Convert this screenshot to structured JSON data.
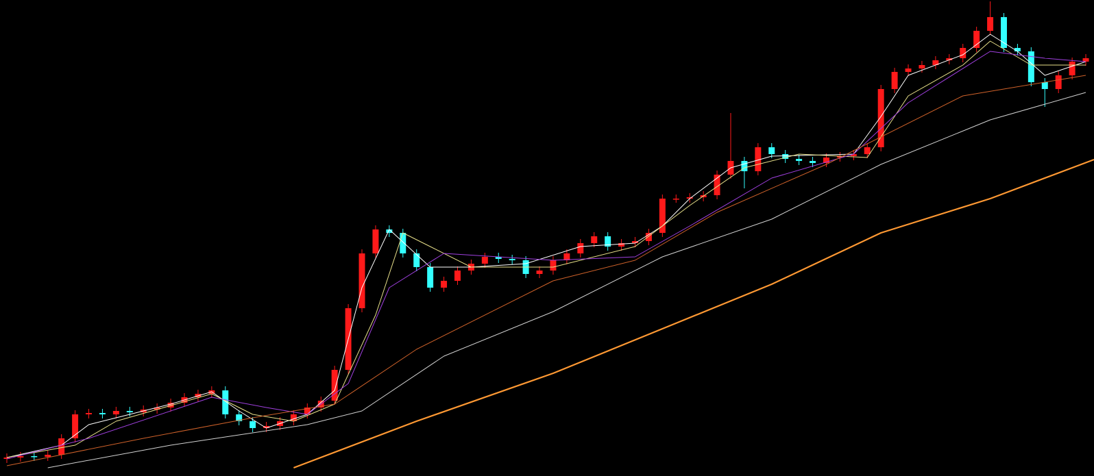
{
  "chart_data": {
    "type": "candlestick",
    "ylim": [
      0,
      695
    ],
    "xlim": [
      -0.5,
      79.6
    ],
    "up_color": "#ff1a1a",
    "down_color": "#33ffff",
    "open": [
      25,
      27,
      29,
      28,
      31,
      55,
      90,
      92,
      90,
      95,
      93,
      97,
      100,
      107,
      115,
      120,
      125,
      90,
      80,
      70,
      73,
      80,
      90,
      100,
      110,
      155,
      245,
      325,
      360,
      355,
      325,
      305,
      275,
      285,
      300,
      310,
      320,
      317,
      315,
      295,
      300,
      315,
      325,
      340,
      350,
      335,
      340,
      343,
      355,
      405,
      405,
      407,
      410,
      440,
      460,
      445,
      480,
      470,
      463,
      460,
      457,
      465,
      467,
      470,
      480,
      565,
      590,
      595,
      600,
      607,
      610,
      625,
      650,
      670,
      625,
      620,
      575,
      565,
      585,
      605
    ],
    "high": [
      33,
      35,
      35,
      37,
      61,
      96,
      98,
      98,
      101,
      101,
      103,
      106,
      113,
      121,
      126,
      131,
      131,
      96,
      86,
      79,
      86,
      96,
      106,
      116,
      161,
      251,
      331,
      366,
      366,
      361,
      331,
      311,
      291,
      306,
      316,
      326,
      326,
      323,
      321,
      306,
      321,
      331,
      346,
      356,
      356,
      346,
      349,
      361,
      411,
      411,
      413,
      416,
      446,
      530,
      466,
      486,
      486,
      476,
      469,
      466,
      471,
      473,
      476,
      486,
      571,
      596,
      601,
      606,
      613,
      616,
      631,
      656,
      693,
      676,
      631,
      626,
      581,
      591,
      611,
      616
    ],
    "low": [
      19,
      21,
      22,
      22,
      25,
      49,
      84,
      84,
      84,
      87,
      87,
      91,
      94,
      101,
      109,
      114,
      84,
      74,
      64,
      64,
      67,
      74,
      84,
      94,
      104,
      149,
      239,
      319,
      349,
      319,
      299,
      269,
      269,
      279,
      294,
      304,
      311,
      309,
      289,
      289,
      294,
      309,
      319,
      334,
      329,
      329,
      334,
      337,
      349,
      399,
      399,
      401,
      404,
      434,
      420,
      439,
      464,
      457,
      454,
      451,
      451,
      459,
      461,
      464,
      474,
      559,
      584,
      589,
      594,
      601,
      604,
      619,
      644,
      619,
      614,
      569,
      539,
      559,
      579,
      599
    ],
    "close": [
      27,
      29,
      28,
      31,
      55,
      90,
      92,
      90,
      95,
      93,
      97,
      100,
      107,
      115,
      120,
      125,
      90,
      80,
      70,
      73,
      80,
      90,
      100,
      110,
      155,
      245,
      325,
      360,
      355,
      325,
      305,
      275,
      285,
      300,
      310,
      320,
      317,
      315,
      295,
      300,
      315,
      325,
      340,
      350,
      335,
      340,
      343,
      355,
      405,
      405,
      407,
      410,
      440,
      460,
      445,
      480,
      470,
      463,
      460,
      457,
      465,
      467,
      470,
      480,
      565,
      590,
      595,
      600,
      607,
      610,
      625,
      650,
      670,
      625,
      620,
      575,
      565,
      585,
      605,
      610
    ],
    "lines": [
      {
        "color": "#ffffff",
        "width": 1,
        "x": [
          0,
          4,
          6,
          12,
          15,
          17,
          19,
          22,
          24,
          26,
          28,
          31,
          34,
          38,
          42,
          46,
          48,
          50,
          53,
          56,
          62,
          64,
          66,
          70,
          72,
          74,
          76,
          79
        ],
        "values": [
          27,
          45,
          75,
          105,
          123,
          95,
          70,
          90,
          125,
          275,
          360,
          305,
          305,
          310,
          335,
          340,
          365,
          405,
          450,
          467,
          470,
          525,
          585,
          615,
          645,
          620,
          585,
          605
        ]
      },
      {
        "color": "#e8e08a",
        "width": 1,
        "x": [
          0,
          5,
          8,
          15,
          18,
          21,
          24,
          27,
          29,
          31,
          34,
          40,
          46,
          50,
          54,
          58,
          63,
          66,
          70,
          72,
          75,
          79
        ],
        "values": [
          27,
          45,
          80,
          120,
          90,
          80,
          105,
          235,
          355,
          335,
          305,
          305,
          335,
          395,
          450,
          470,
          465,
          555,
          600,
          635,
          600,
          600
        ]
      },
      {
        "color": "#a040e0",
        "width": 1,
        "x": [
          0,
          6,
          15,
          19,
          22,
          25,
          28,
          32,
          40,
          46,
          50,
          56,
          62,
          66,
          72,
          76,
          79
        ],
        "values": [
          25,
          55,
          115,
          100,
          90,
          135,
          275,
          325,
          315,
          320,
          365,
          435,
          470,
          545,
          620,
          610,
          605
        ]
      },
      {
        "color": "#d0622a",
        "width": 1,
        "x": [
          0,
          10,
          18,
          24,
          30,
          40,
          46,
          52,
          60,
          70,
          79
        ],
        "values": [
          15,
          55,
          85,
          105,
          185,
          285,
          315,
          385,
          455,
          555,
          585
        ]
      },
      {
        "color": "#d4d4d4",
        "width": 1,
        "x": [
          3,
          12,
          22,
          26,
          32,
          40,
          48,
          56,
          64,
          72,
          79
        ],
        "values": [
          12,
          45,
          75,
          95,
          175,
          240,
          320,
          375,
          455,
          520,
          560
        ]
      },
      {
        "color": "#ff9933",
        "width": 2.2,
        "x": [
          21,
          30,
          40,
          48,
          56,
          64,
          72,
          79.6
        ],
        "values": [
          12,
          80,
          150,
          215,
          280,
          355,
          405,
          462
        ]
      }
    ]
  }
}
